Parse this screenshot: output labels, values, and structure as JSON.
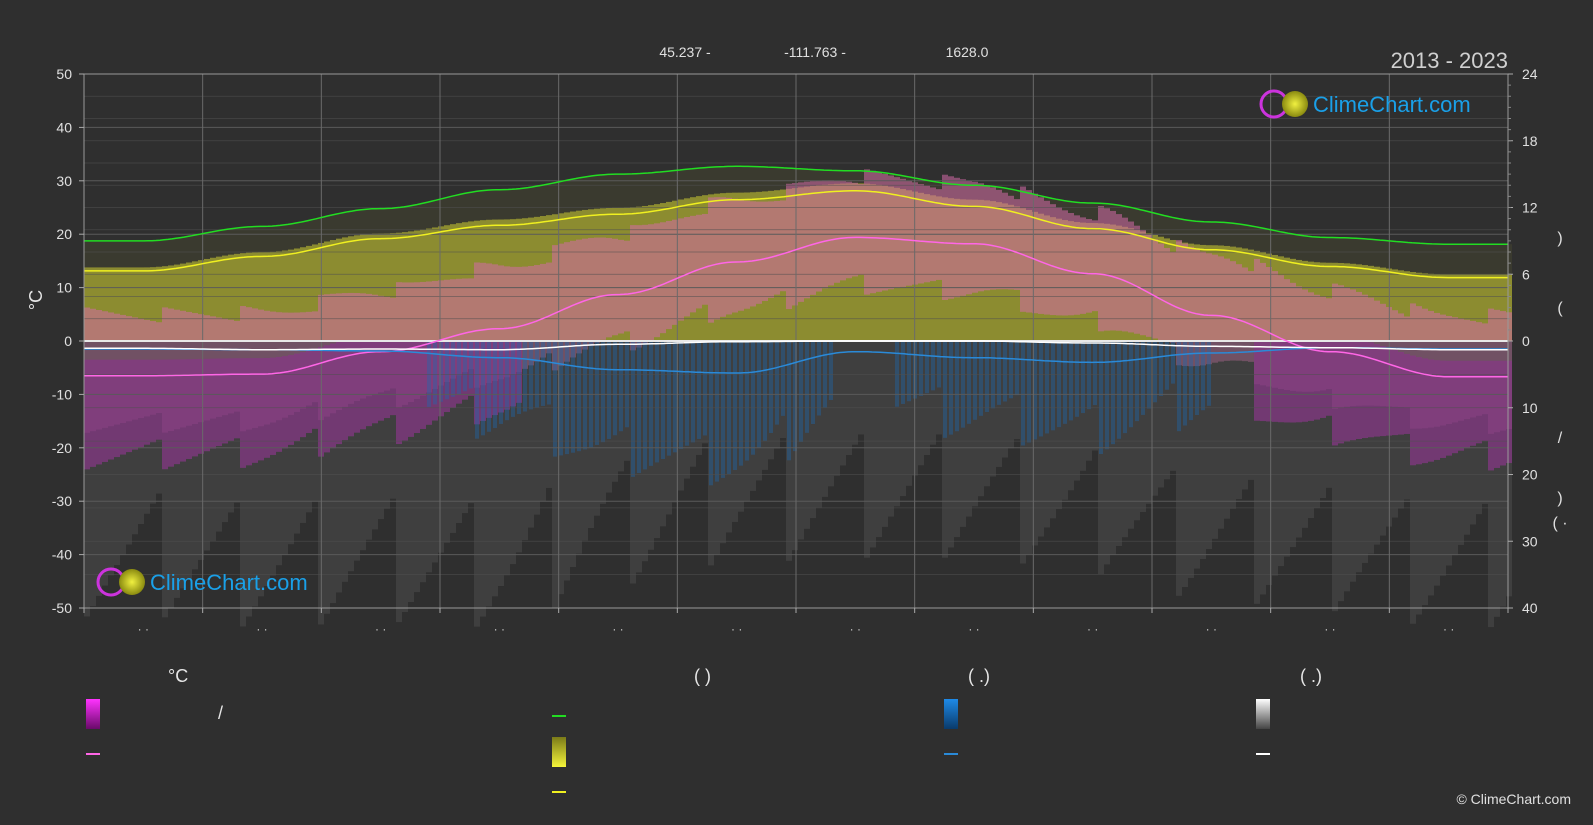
{
  "header": {
    "latitude": "45.237 -",
    "longitude": "-111.763 -",
    "elevation": "1628.0",
    "period": "2013 - 2023"
  },
  "logo_text": "ClimeChart.com",
  "copyright": "© ClimeChart.com",
  "colors": {
    "background": "#2f2f2f",
    "sunshine_band": "#a8a832",
    "temp_band": "#d46aa8",
    "low_band": "#b020b0",
    "precip": "#1e6ab0",
    "snow": "#8a8a8a",
    "daylight_line": "#22dd22",
    "sunshine_line": "#f0f020",
    "temp_line": "#ff66e6",
    "precip_line": "#2a8ad8",
    "snow_line": "#ffffff",
    "logo_blue": "#1aa0e8"
  },
  "chart_data": {
    "type": "line",
    "left_axis": {
      "label": "°C",
      "ticks": [
        "50",
        "40",
        "30",
        "20",
        "10",
        "0",
        "-10",
        "-20",
        "-30",
        "-40",
        "-50"
      ],
      "ylim": [
        -50,
        50
      ]
    },
    "right_axis": {
      "ticks_top": [
        "24",
        "18",
        "12",
        "6",
        "0"
      ],
      "ticks_bottom": [
        "10",
        "20",
        "30",
        "40"
      ],
      "sun_ylim": [
        0,
        24
      ],
      "precip_ylim": [
        0,
        40
      ],
      "fragments": [
        ")",
        "(",
        "/",
        ")",
        "(   ·"
      ]
    },
    "x_ticks": [
      "· ·",
      "· ·",
      "· ·",
      "· ·",
      "· ·",
      "· ·",
      "· ·",
      "· ·",
      "· ·",
      "· ·",
      "· ·",
      "· ·"
    ],
    "months": 12,
    "series": [
      {
        "key": "daylight",
        "values": [
          9.0,
          10.3,
          11.9,
          13.6,
          15.0,
          15.7,
          15.3,
          14.0,
          12.4,
          10.7,
          9.3,
          8.7
        ]
      },
      {
        "key": "sunshine",
        "values": [
          6.3,
          7.6,
          9.2,
          10.4,
          11.4,
          12.7,
          13.5,
          12.1,
          10.1,
          8.2,
          6.7,
          5.7
        ]
      },
      {
        "key": "temp_mean",
        "values": [
          -6.5,
          -6.2,
          -2.0,
          2.3,
          8.7,
          14.8,
          19.4,
          18.2,
          12.6,
          4.8,
          -2.0,
          -6.7
        ]
      },
      {
        "key": "precip",
        "values": [
          1.2,
          1.3,
          1.5,
          2.5,
          4.3,
          4.8,
          1.6,
          2.5,
          3.2,
          1.8,
          1.0,
          1.2
        ]
      },
      {
        "key": "snow",
        "values": [
          1.1,
          1.3,
          1.2,
          1.3,
          0.5,
          0.1,
          0.0,
          0.0,
          0.3,
          0.8,
          1.0,
          1.3
        ]
      }
    ]
  },
  "legend": {
    "columns": [
      {
        "header": "°C",
        "items": [
          {
            "type": "grad",
            "key": "temp",
            "text": "/"
          },
          {
            "type": "line",
            "key": "temp_line",
            "text": ""
          }
        ]
      },
      {
        "header": "(          )",
        "items": [
          {
            "type": "line",
            "key": "daylight_line",
            "text": ""
          },
          {
            "type": "grad",
            "key": "sun",
            "text": ""
          },
          {
            "type": "line",
            "key": "sunshine_line",
            "text": ""
          }
        ]
      },
      {
        "header": "(   .)",
        "items": [
          {
            "type": "grad",
            "key": "precip",
            "text": ""
          },
          {
            "type": "line",
            "key": "precip_line",
            "text": ""
          }
        ]
      },
      {
        "header": "(   .)",
        "items": [
          {
            "type": "grad",
            "key": "snow",
            "text": ""
          },
          {
            "type": "line",
            "key": "snow_line",
            "text": ""
          }
        ]
      }
    ]
  }
}
